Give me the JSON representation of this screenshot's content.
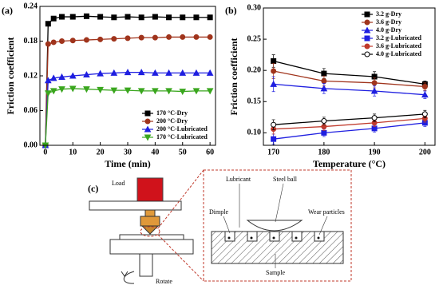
{
  "chart_data": [
    {
      "type": "line",
      "panel_label": "(a)",
      "x_label": "Time (min)",
      "y_label": "Friction coefficient",
      "x": [
        0,
        1,
        3,
        6,
        10,
        15,
        20,
        25,
        30,
        35,
        40,
        45,
        50,
        55,
        60
      ],
      "xlim": [
        -2,
        62
      ],
      "xticks": [
        0,
        10,
        20,
        30,
        40,
        50,
        60
      ],
      "ylim": [
        0,
        0.24
      ],
      "yticks": [
        {
          "value": 0,
          "label": "0.00"
        },
        0.06,
        0.12,
        0.18,
        0.24
      ],
      "legend": "lower right",
      "series": [
        {
          "name": "170 °C-Dry",
          "color": "#000000",
          "marker": "square",
          "values": [
            0,
            0.21,
            0.219,
            0.222,
            0.222,
            0.223,
            0.222,
            0.221,
            0.222,
            0.221,
            0.222,
            0.221,
            0.221,
            0.221,
            0.221
          ]
        },
        {
          "name": "200 °C-Dry",
          "color": "#a0341c",
          "marker": "circle",
          "values": [
            0,
            0.175,
            0.178,
            0.18,
            0.181,
            0.182,
            0.183,
            0.184,
            0.185,
            0.186,
            0.186,
            0.187,
            0.187,
            0.187,
            0.187
          ]
        },
        {
          "name": "200 °C-Lubricated",
          "color": "#1f1fe0",
          "marker": "triangle",
          "values": [
            0,
            0.112,
            0.116,
            0.118,
            0.12,
            0.122,
            0.124,
            0.125,
            0.126,
            0.126,
            0.125,
            0.125,
            0.125,
            0.125,
            0.125
          ]
        },
        {
          "name": "170 °C-Lubricated",
          "color": "#3aa61e",
          "marker": "triangle-down",
          "values": [
            0,
            0.09,
            0.094,
            0.097,
            0.098,
            0.097,
            0.096,
            0.095,
            0.095,
            0.094,
            0.094,
            0.094,
            0.093,
            0.094,
            0.094
          ]
        }
      ]
    },
    {
      "type": "line",
      "panel_label": "(b)",
      "x_label": "Temperature (°C)",
      "y_label": "Friction coefficient",
      "x": [
        170,
        180,
        190,
        200
      ],
      "xlim": [
        168,
        202
      ],
      "xticks": [
        170,
        180,
        190,
        200
      ],
      "ylim": [
        0.08,
        0.3
      ],
      "yticks": [
        {
          "value": 0.1,
          "label": "0.10"
        },
        0.15,
        {
          "value": 0.2,
          "label": "0.20"
        },
        0.25,
        {
          "value": 0.3,
          "label": "0.30"
        }
      ],
      "legend": "upper right",
      "series": [
        {
          "name": "3.2 g-Dry",
          "color": "#000000",
          "marker": "square",
          "values": [
            0.215,
            0.195,
            0.19,
            0.178
          ],
          "errors": [
            0.01,
            0.008,
            0.008,
            0.005
          ]
        },
        {
          "name": "3.6 g-Dry",
          "color": "#a0341c",
          "marker": "circle",
          "values": [
            0.199,
            0.183,
            0.18,
            0.174
          ],
          "errors": [
            0.012,
            0.008,
            0.008,
            0.006
          ]
        },
        {
          "name": "4.0 g-Dry",
          "color": "#1f1fe0",
          "marker": "triangle",
          "values": [
            0.178,
            0.171,
            0.167,
            0.161
          ],
          "errors": [
            0.012,
            0.008,
            0.008,
            0.006
          ]
        },
        {
          "name": "3.2 g-Lubricated",
          "color": "#1f1fe0",
          "marker": "square",
          "values": [
            0.09,
            0.1,
            0.107,
            0.116
          ],
          "errors": [
            0.008,
            0.006,
            0.006,
            0.006
          ]
        },
        {
          "name": "3.6 g-Lubricated",
          "color": "#c0392b",
          "marker": "circle",
          "values": [
            0.106,
            0.11,
            0.116,
            0.123
          ],
          "errors": [
            0.008,
            0.006,
            0.006,
            0.006
          ]
        },
        {
          "name": "4.0 g-Lubricated",
          "color": "#000000",
          "marker": "circle-open",
          "values": [
            0.113,
            0.119,
            0.124,
            0.13
          ],
          "errors": [
            0.008,
            0.006,
            0.006,
            0.006
          ]
        }
      ]
    }
  ],
  "diagram": {
    "panel_label": "(c)",
    "load": "Load",
    "rotate": "Rotate",
    "lubricant": "Lubricant",
    "steel_ball": "Steel ball",
    "dimple": "Dimple",
    "wear_particles": "Wear particles",
    "sample": "Sample"
  }
}
